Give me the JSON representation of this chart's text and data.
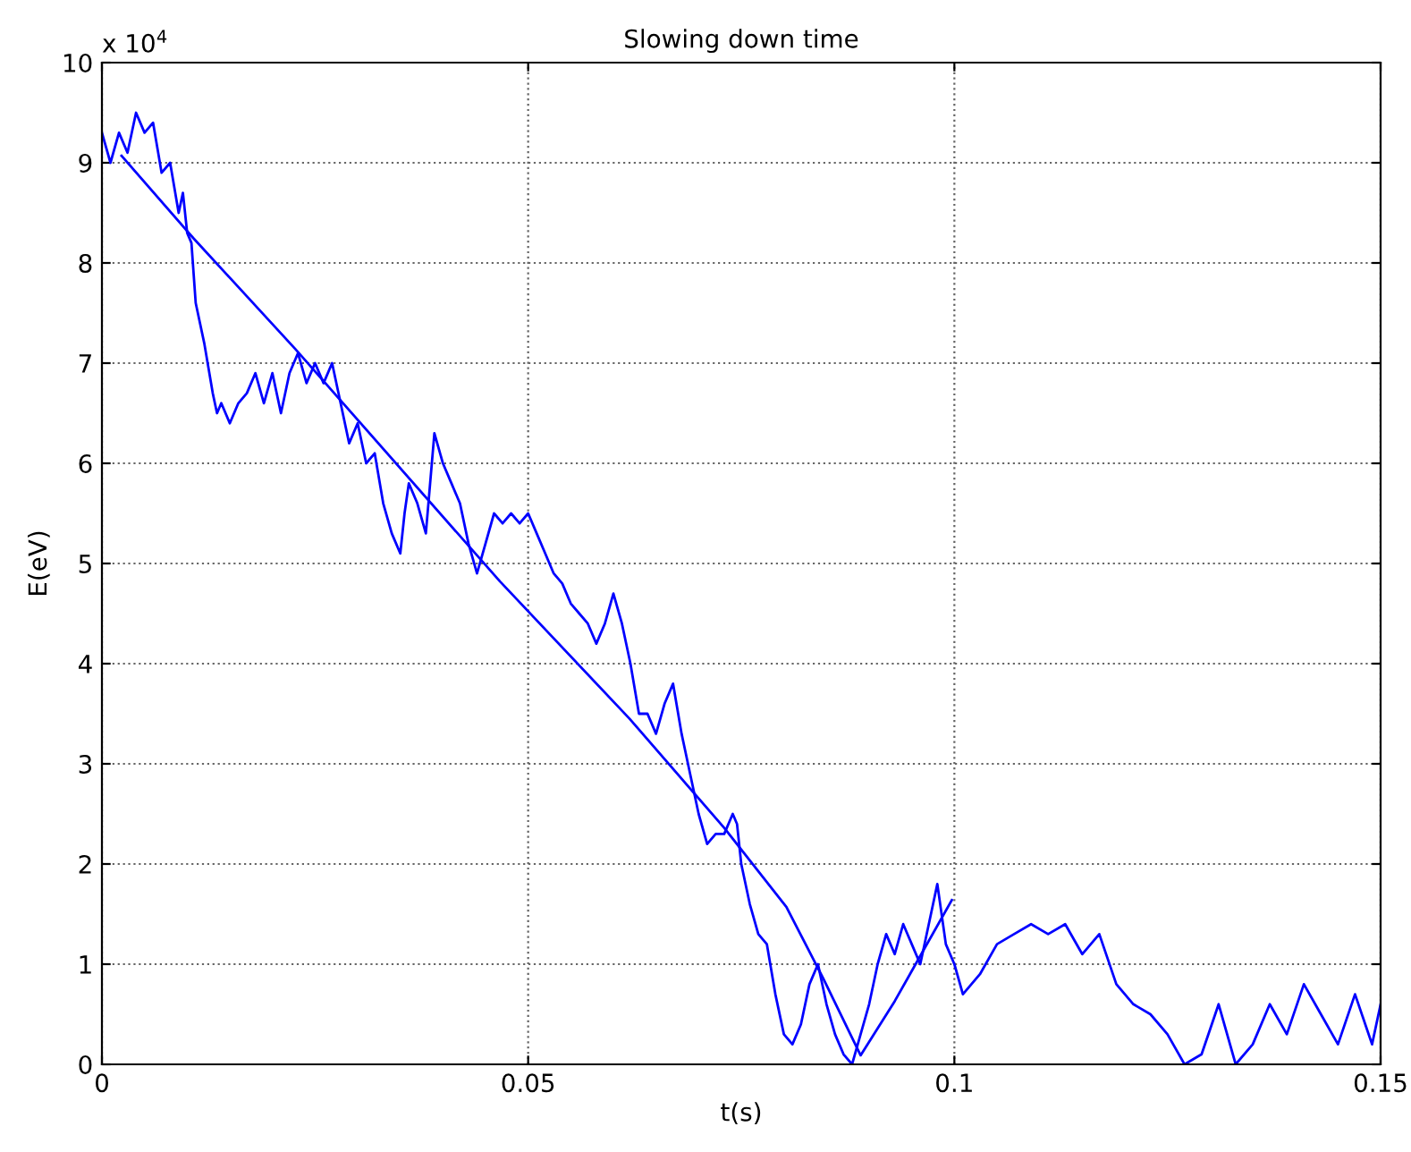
{
  "chart_data": {
    "type": "line",
    "title": "Slowing down time",
    "xlabel": "t(s)",
    "ylabel": "E(eV)",
    "annotations": [
      "x 10$^{4}$"
    ],
    "xlim": [
      0,
      0.15
    ],
    "xticks": [
      0,
      0.05,
      0.1,
      0.15
    ],
    "ylim": [
      0,
      10
    ],
    "yticks": [
      0,
      1,
      2,
      3,
      4,
      5,
      6,
      7,
      8,
      9,
      10
    ],
    "grid": true,
    "legend": false,
    "series": [
      {
        "color": "#0000ff",
        "x": [
          0,
          0.001,
          0.002,
          0.003,
          0.004,
          0.005,
          0.006,
          0.007,
          0.008,
          0.009,
          0.0095,
          0.01,
          0.0105,
          0.011,
          0.012,
          0.013,
          0.0135,
          0.014,
          0.015,
          0.016,
          0.017,
          0.018,
          0.019,
          0.02,
          0.021,
          0.022,
          0.023,
          0.024,
          0.025,
          0.026,
          0.027,
          0.028,
          0.029,
          0.03,
          0.031,
          0.032,
          0.033,
          0.034,
          0.035,
          0.0355,
          0.036,
          0.037,
          0.038,
          0.039,
          0.04,
          0.041,
          0.042,
          0.043,
          0.044,
          0.045,
          0.046,
          0.047,
          0.048,
          0.049,
          0.05,
          0.051,
          0.052,
          0.053,
          0.054,
          0.055,
          0.056,
          0.057,
          0.058,
          0.059,
          0.06,
          0.061,
          0.062,
          0.063,
          0.064,
          0.065,
          0.066,
          0.067,
          0.068,
          0.069,
          0.07,
          0.071,
          0.072,
          0.073,
          0.074,
          0.0745,
          0.075,
          0.076,
          0.077,
          0.078,
          0.079,
          0.08,
          0.081,
          0.082,
          0.083,
          0.084,
          0.085,
          0.086,
          0.087,
          0.088,
          0.089,
          0.09,
          0.091,
          0.092,
          0.093,
          0.094,
          0.095,
          0.096,
          0.097,
          0.098,
          0.099,
          0.1,
          0.101,
          0.103,
          0.105,
          0.107,
          0.109,
          0.111,
          0.113,
          0.115,
          0.117,
          0.119,
          0.121,
          0.123,
          0.125,
          0.127,
          0.129,
          0.131,
          0.133,
          0.135,
          0.137,
          0.139,
          0.141,
          0.143,
          0.145,
          0.147,
          0.149,
          0.15
        ],
        "values": [
          9.3,
          9.0,
          9.3,
          9.1,
          9.5,
          9.3,
          9.4,
          8.9,
          9.0,
          8.5,
          8.7,
          8.3,
          8.2,
          7.6,
          7.2,
          6.7,
          6.5,
          6.6,
          6.4,
          6.6,
          6.7,
          6.9,
          6.6,
          6.9,
          6.5,
          6.9,
          7.1,
          6.8,
          7.0,
          6.8,
          7.0,
          6.6,
          6.2,
          6.4,
          6.0,
          6.1,
          5.6,
          5.3,
          5.1,
          5.5,
          5.8,
          5.6,
          5.3,
          6.3,
          6.0,
          5.8,
          5.6,
          5.2,
          4.9,
          5.2,
          5.5,
          5.4,
          5.5,
          5.4,
          5.5,
          5.3,
          5.1,
          4.9,
          4.8,
          4.6,
          4.5,
          4.4,
          4.2,
          4.4,
          4.7,
          4.4,
          4.0,
          3.5,
          3.5,
          3.3,
          3.6,
          3.8,
          3.3,
          2.9,
          2.5,
          2.2,
          2.3,
          2.3,
          2.5,
          2.4,
          2.0,
          1.6,
          1.3,
          1.2,
          0.7,
          0.3,
          0.2,
          0.4,
          0.8,
          1.0,
          0.6,
          0.3,
          0.1,
          0.0,
          0.3,
          0.6,
          1.0,
          1.3,
          1.1,
          1.4,
          1.2,
          1.0,
          1.4,
          1.8,
          1.2,
          1.0,
          0.7,
          0.9,
          1.2,
          1.3,
          1.4,
          1.3,
          1.4,
          1.1,
          1.3,
          0.8,
          0.6,
          0.5,
          0.3,
          0.0,
          0.1,
          0.6,
          0.0,
          0.2,
          0.6,
          0.3,
          0.8,
          0.5,
          0.2,
          0.7,
          0.2,
          0.6
        ]
      },
      {
        "color": "#0000ff",
        "x": [
          0.0023,
          0.0107,
          0.0227,
          0.0467,
          0.0619,
          0.073,
          0.0803,
          0.0846,
          0.089,
          0.093,
          0.0997
        ],
        "values": [
          9.07,
          8.25,
          7.14,
          4.82,
          3.45,
          2.36,
          1.57,
          0.86,
          0.09,
          0.63,
          1.64
        ]
      }
    ]
  }
}
